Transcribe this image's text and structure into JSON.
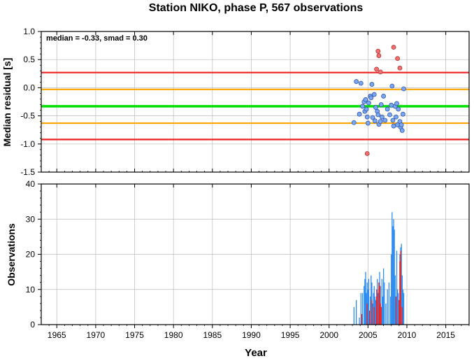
{
  "title": "Station NIKO, phase P, 567 observations",
  "colors": {
    "blue": "#2f8cf0",
    "red": "#ee2222",
    "green": "#00e000",
    "orange": "#ffa500",
    "point_blue": "#79a7f2",
    "point_red": "#f47070",
    "grid": "#bbbbbb"
  },
  "chart_data": [
    {
      "type": "scatter",
      "ylabel": "Median residual [s]",
      "annotation": "median = -0.33, smad = 0.30",
      "xlim": [
        1963,
        2018
      ],
      "ylim": [
        -1.5,
        1.0
      ],
      "yticks": [
        "1.0",
        "0.5",
        "0.0",
        "-0.5",
        "-1.0",
        "-1.5"
      ],
      "ytick_values": [
        1.0,
        0.5,
        0.0,
        -0.5,
        -1.0,
        -1.5
      ],
      "grid": true,
      "hlines": [
        {
          "y": 0.27,
          "color": "red"
        },
        {
          "y": -0.03,
          "color": "orange"
        },
        {
          "y": -0.33,
          "color": "green"
        },
        {
          "y": -0.63,
          "color": "orange"
        },
        {
          "y": -0.92,
          "color": "red"
        }
      ],
      "points_blue": [
        [
          2003.2,
          -0.62
        ],
        [
          2003.5,
          0.11
        ],
        [
          2003.9,
          -0.47
        ],
        [
          2004.1,
          0.08
        ],
        [
          2004.3,
          -0.33
        ],
        [
          2004.5,
          -0.25
        ],
        [
          2004.6,
          -0.42
        ],
        [
          2004.7,
          -0.21
        ],
        [
          2004.8,
          -0.38
        ],
        [
          2004.9,
          -0.52
        ],
        [
          2005.0,
          -0.63
        ],
        [
          2005.1,
          -0.27
        ],
        [
          2005.3,
          -0.15
        ],
        [
          2005.4,
          -0.18
        ],
        [
          2005.5,
          0.06
        ],
        [
          2005.6,
          -0.53
        ],
        [
          2005.8,
          -0.12
        ],
        [
          2005.9,
          -0.59
        ],
        [
          2006.0,
          -0.35
        ],
        [
          2006.2,
          -0.42
        ],
        [
          2006.3,
          -0.48
        ],
        [
          2006.4,
          -0.65
        ],
        [
          2006.6,
          -0.6
        ],
        [
          2006.7,
          -0.3
        ],
        [
          2006.8,
          -0.52
        ],
        [
          2007.0,
          -0.15
        ],
        [
          2007.2,
          -0.58
        ],
        [
          2007.5,
          -0.38
        ],
        [
          2007.8,
          -0.48
        ],
        [
          2008.0,
          -0.31
        ],
        [
          2008.1,
          0.03
        ],
        [
          2008.2,
          -0.58
        ],
        [
          2008.3,
          -0.68
        ],
        [
          2008.5,
          -0.33
        ],
        [
          2008.6,
          -0.52
        ],
        [
          2008.7,
          -0.28
        ],
        [
          2008.8,
          -0.66
        ],
        [
          2008.9,
          -0.38
        ],
        [
          2009.1,
          -0.6
        ],
        [
          2009.2,
          -0.7
        ],
        [
          2009.3,
          -0.66
        ],
        [
          2009.4,
          -0.76
        ],
        [
          2009.5,
          -0.47
        ],
        [
          2009.6,
          -0.02
        ]
      ],
      "points_red": [
        [
          2004.9,
          -1.17
        ],
        [
          2006.1,
          0.33
        ],
        [
          2006.3,
          0.65
        ],
        [
          2006.4,
          0.57
        ],
        [
          2006.6,
          0.28
        ],
        [
          2008.3,
          0.72
        ],
        [
          2008.8,
          0.52
        ],
        [
          2009.1,
          0.35
        ]
      ]
    },
    {
      "type": "bar",
      "xlabel": "Year",
      "ylabel": "Observations",
      "xlim": [
        1963,
        2018
      ],
      "ylim": [
        0,
        40
      ],
      "xticks": [
        "1965",
        "1970",
        "1975",
        "1980",
        "1985",
        "1990",
        "1995",
        "2000",
        "2005",
        "2010",
        "2015"
      ],
      "xtick_values": [
        1965,
        1970,
        1975,
        1980,
        1985,
        1990,
        1995,
        2000,
        2005,
        2010,
        2015
      ],
      "yticks": [
        "40",
        "30",
        "20",
        "10",
        "0"
      ],
      "ytick_values": [
        40,
        30,
        20,
        10,
        0
      ],
      "grid": true,
      "bars_blue": [
        [
          2003.2,
          5
        ],
        [
          2003.5,
          7
        ],
        [
          2003.9,
          2
        ],
        [
          2004.1,
          9
        ],
        [
          2004.3,
          9
        ],
        [
          2004.5,
          11
        ],
        [
          2004.6,
          13
        ],
        [
          2004.7,
          15
        ],
        [
          2004.8,
          9
        ],
        [
          2004.9,
          12
        ],
        [
          2005.0,
          10
        ],
        [
          2005.1,
          13
        ],
        [
          2005.3,
          8
        ],
        [
          2005.4,
          14
        ],
        [
          2005.5,
          12
        ],
        [
          2005.6,
          6
        ],
        [
          2005.7,
          9
        ],
        [
          2005.8,
          11
        ],
        [
          2005.9,
          8
        ],
        [
          2006.0,
          7
        ],
        [
          2006.1,
          10
        ],
        [
          2006.2,
          13
        ],
        [
          2006.3,
          9
        ],
        [
          2006.5,
          15
        ],
        [
          2006.6,
          11
        ],
        [
          2006.8,
          13
        ],
        [
          2006.9,
          8
        ],
        [
          2007.0,
          16
        ],
        [
          2007.1,
          12
        ],
        [
          2007.3,
          6
        ],
        [
          2007.5,
          10
        ],
        [
          2007.7,
          12
        ],
        [
          2007.9,
          8
        ],
        [
          2008.0,
          20
        ],
        [
          2008.1,
          32
        ],
        [
          2008.2,
          28
        ],
        [
          2008.3,
          30
        ],
        [
          2008.4,
          27
        ],
        [
          2008.5,
          14
        ],
        [
          2008.7,
          21
        ],
        [
          2008.8,
          10
        ],
        [
          2008.9,
          9
        ],
        [
          2009.1,
          20
        ],
        [
          2009.2,
          22
        ],
        [
          2009.3,
          23
        ],
        [
          2009.4,
          14
        ],
        [
          2009.5,
          10
        ],
        [
          2009.6,
          9
        ]
      ],
      "bars_red": [
        [
          2004.2,
          3
        ],
        [
          2004.9,
          6
        ],
        [
          2005.2,
          4
        ],
        [
          2005.5,
          7
        ],
        [
          2005.8,
          5
        ],
        [
          2006.1,
          8
        ],
        [
          2006.2,
          10
        ],
        [
          2006.4,
          12
        ],
        [
          2006.5,
          11
        ],
        [
          2006.6,
          6
        ],
        [
          2006.7,
          5
        ],
        [
          2008.6,
          8
        ],
        [
          2009.0,
          7
        ],
        [
          2009.1,
          18
        ],
        [
          2009.2,
          21
        ],
        [
          2009.4,
          5
        ]
      ]
    }
  ]
}
